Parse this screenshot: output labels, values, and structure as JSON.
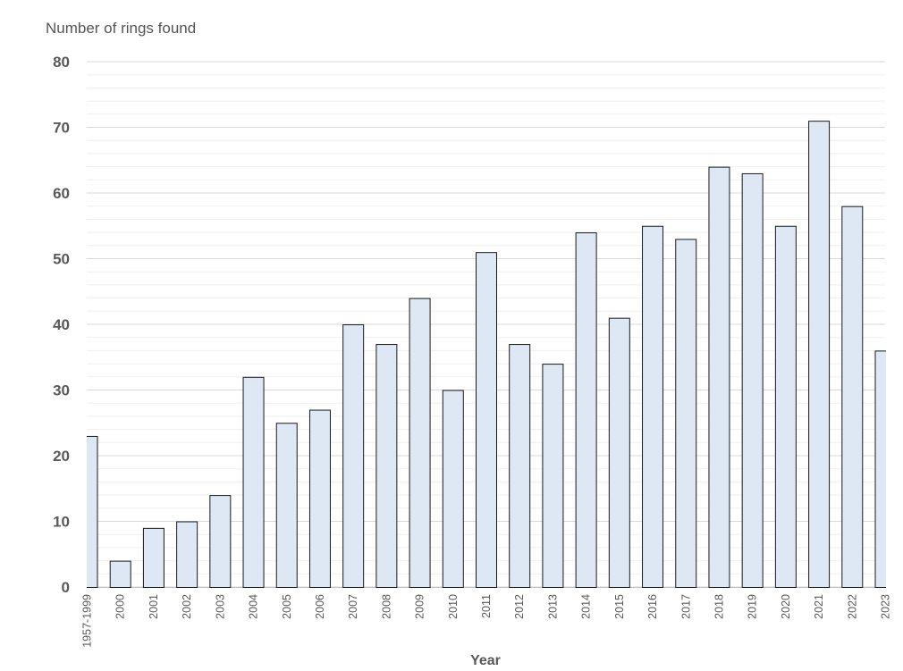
{
  "chart_data": {
    "type": "bar",
    "ylabel": "Number of rings found",
    "xlabel": "Year",
    "ylim": [
      0,
      80
    ],
    "yticks": [
      0,
      10,
      20,
      30,
      40,
      50,
      60,
      70,
      80
    ],
    "grid": true,
    "legend": "none",
    "categories": [
      "1957-1999",
      "2000",
      "2001",
      "2002",
      "2003",
      "2004",
      "2005",
      "2006",
      "2007",
      "2008",
      "2009",
      "2010",
      "2011",
      "2012",
      "2013",
      "2014",
      "2015",
      "2016",
      "2017",
      "2018",
      "2019",
      "2020",
      "2021",
      "2022",
      "2023"
    ],
    "values": [
      23,
      4,
      9,
      10,
      14,
      32,
      25,
      27,
      40,
      37,
      44,
      30,
      51,
      37,
      34,
      54,
      41,
      55,
      53,
      64,
      63,
      55,
      71,
      58,
      36
    ],
    "colors": {
      "bar_fill": "#dee8f5",
      "bar_stroke": "#1a1a1a",
      "major_grid": "#d9d9d9",
      "minor_grid": "#efefef"
    }
  }
}
